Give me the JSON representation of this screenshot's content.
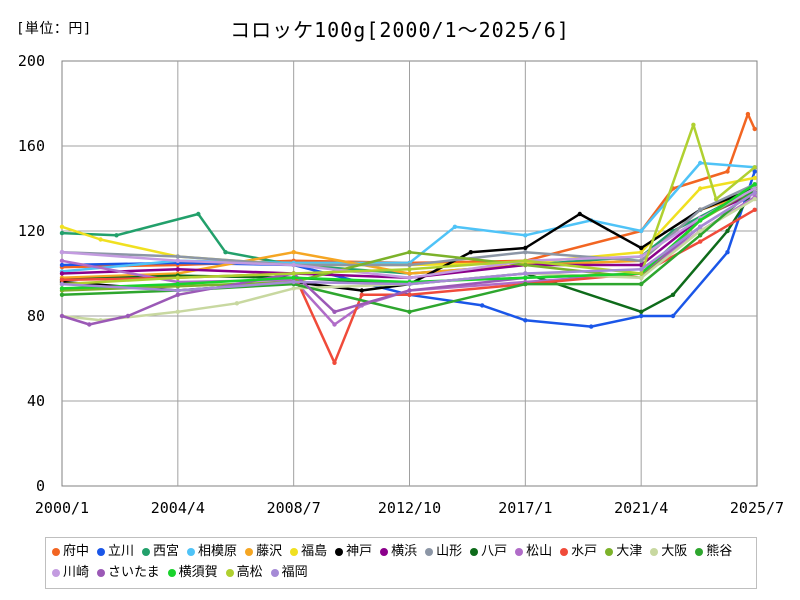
{
  "chart_data": {
    "type": "line",
    "title": "コロッケ100g[2000/1〜2025/6]",
    "unit_label": "[単位：円]",
    "y_ticks": [
      "0",
      "40",
      "80",
      "120",
      "160",
      "200"
    ],
    "x_ticks": [
      "2000/1",
      "2004/4",
      "2008/7",
      "2012/10",
      "2017/1",
      "2021/4",
      "2025/7"
    ],
    "ylim": [
      0,
      200
    ],
    "xlim": [
      "2000/1",
      "2025/7"
    ],
    "grid": true,
    "legend_position": "bottom",
    "series": [
      {
        "name": "府中",
        "color": "#f26522",
        "points": [
          [
            "2000/1",
            103
          ],
          [
            "2004/4",
            104
          ],
          [
            "2008/7",
            106
          ],
          [
            "2012/10",
            105
          ],
          [
            "2017/1",
            106
          ],
          [
            "2021/4",
            120
          ],
          [
            "2022/6",
            140
          ],
          [
            "2024/6",
            148
          ],
          [
            "2025/3",
            175
          ],
          [
            "2025/6",
            168
          ]
        ]
      },
      {
        "name": "立川",
        "color": "#1a56e8",
        "points": [
          [
            "2000/1",
            104
          ],
          [
            "2004/4",
            105
          ],
          [
            "2008/7",
            104
          ],
          [
            "2012/10",
            90
          ],
          [
            "2015/6",
            85
          ],
          [
            "2017/1",
            78
          ],
          [
            "2019/6",
            75
          ],
          [
            "2021/4",
            80
          ],
          [
            "2022/6",
            80
          ],
          [
            "2024/6",
            110
          ],
          [
            "2025/6",
            148
          ]
        ]
      },
      {
        "name": "西宮",
        "color": "#22a06b",
        "points": [
          [
            "2000/1",
            119
          ],
          [
            "2002/1",
            118
          ],
          [
            "2005/1",
            128
          ],
          [
            "2006/1",
            110
          ],
          [
            "2008/7",
            104
          ],
          [
            "2012/10",
            100
          ],
          [
            "2017/1",
            104
          ],
          [
            "2021/4",
            108
          ],
          [
            "2022/6",
            120
          ],
          [
            "2025/6",
            140
          ]
        ]
      },
      {
        "name": "相模原",
        "color": "#4fc3f7",
        "points": [
          [
            "2000/1",
            101
          ],
          [
            "2004/4",
            106
          ],
          [
            "2008/7",
            105
          ],
          [
            "2012/10",
            105
          ],
          [
            "2014/6",
            122
          ],
          [
            "2017/1",
            118
          ],
          [
            "2019/6",
            125
          ],
          [
            "2021/4",
            120
          ],
          [
            "2023/6",
            152
          ],
          [
            "2025/6",
            150
          ]
        ]
      },
      {
        "name": "藤沢",
        "color": "#f5a623",
        "points": [
          [
            "2000/1",
            98
          ],
          [
            "2004/4",
            100
          ],
          [
            "2008/7",
            110
          ],
          [
            "2012/10",
            100
          ],
          [
            "2017/1",
            104
          ],
          [
            "2021/4",
            106
          ],
          [
            "2023/6",
            130
          ],
          [
            "2025/6",
            138
          ]
        ]
      },
      {
        "name": "福島",
        "color": "#f0e020",
        "points": [
          [
            "2000/1",
            122
          ],
          [
            "2001/6",
            116
          ],
          [
            "2004/4",
            108
          ],
          [
            "2008/7",
            104
          ],
          [
            "2012/10",
            104
          ],
          [
            "2017/1",
            105
          ],
          [
            "2021/4",
            110
          ],
          [
            "2023/6",
            140
          ],
          [
            "2025/6",
            145
          ]
        ]
      },
      {
        "name": "神戸",
        "color": "#000000",
        "points": [
          [
            "2000/1",
            96
          ],
          [
            "2004/4",
            92
          ],
          [
            "2008/7",
            96
          ],
          [
            "2011/1",
            92
          ],
          [
            "2012/10",
            95
          ],
          [
            "2015/1",
            110
          ],
          [
            "2017/1",
            112
          ],
          [
            "2019/1",
            128
          ],
          [
            "2021/4",
            112
          ],
          [
            "2023/6",
            130
          ],
          [
            "2025/6",
            140
          ]
        ]
      },
      {
        "name": "横浜",
        "color": "#8b008b",
        "points": [
          [
            "2000/1",
            100
          ],
          [
            "2004/4",
            102
          ],
          [
            "2008/7",
            100
          ],
          [
            "2012/10",
            98
          ],
          [
            "2017/1",
            104
          ],
          [
            "2021/4",
            104
          ],
          [
            "2023/6",
            126
          ],
          [
            "2025/6",
            138
          ]
        ]
      },
      {
        "name": "山形",
        "color": "#8c96a6",
        "points": [
          [
            "2000/1",
            110
          ],
          [
            "2004/4",
            108
          ],
          [
            "2008/7",
            104
          ],
          [
            "2012/10",
            104
          ],
          [
            "2017/1",
            110
          ],
          [
            "2021/4",
            106
          ],
          [
            "2023/6",
            130
          ],
          [
            "2025/6",
            142
          ]
        ]
      },
      {
        "name": "八戸",
        "color": "#0e6b1a",
        "points": [
          [
            "2000/1",
            97
          ],
          [
            "2004/4",
            99
          ],
          [
            "2008/7",
            98
          ],
          [
            "2012/10",
            95
          ],
          [
            "2017/1",
            100
          ],
          [
            "2021/4",
            82
          ],
          [
            "2022/6",
            90
          ],
          [
            "2024/6",
            120
          ],
          [
            "2025/6",
            140
          ]
        ]
      },
      {
        "name": "松山",
        "color": "#b06cc8",
        "points": [
          [
            "2000/1",
            106
          ],
          [
            "2004/4",
            96
          ],
          [
            "2008/7",
            97
          ],
          [
            "2010/1",
            76
          ],
          [
            "2011/1",
            85
          ],
          [
            "2012/10",
            92
          ],
          [
            "2017/1",
            96
          ],
          [
            "2021/4",
            100
          ],
          [
            "2023/6",
            120
          ],
          [
            "2025/6",
            136
          ]
        ]
      },
      {
        "name": "水戸",
        "color": "#f04b3a",
        "points": [
          [
            "2000/1",
            97
          ],
          [
            "2004/4",
            98
          ],
          [
            "2008/7",
            100
          ],
          [
            "2010/1",
            58
          ],
          [
            "2011/1",
            90
          ],
          [
            "2012/10",
            90
          ],
          [
            "2017/1",
            95
          ],
          [
            "2021/4",
            100
          ],
          [
            "2023/6",
            115
          ],
          [
            "2025/6",
            130
          ]
        ]
      },
      {
        "name": "大津",
        "color": "#7cb22a",
        "points": [
          [
            "2000/1",
            92
          ],
          [
            "2004/4",
            94
          ],
          [
            "2008/7",
            96
          ],
          [
            "2012/10",
            110
          ],
          [
            "2017/1",
            104
          ],
          [
            "2021/4",
            98
          ],
          [
            "2023/6",
            125
          ],
          [
            "2025/6",
            140
          ]
        ]
      },
      {
        "name": "大阪",
        "color": "#c8d8a0",
        "points": [
          [
            "2000/1",
            80
          ],
          [
            "2001/6",
            78
          ],
          [
            "2004/4",
            82
          ],
          [
            "2006/6",
            86
          ],
          [
            "2008/7",
            93
          ],
          [
            "2012/10",
            95
          ],
          [
            "2017/1",
            100
          ],
          [
            "2021/4",
            98
          ],
          [
            "2023/6",
            120
          ],
          [
            "2025/6",
            135
          ]
        ]
      },
      {
        "name": "熊谷",
        "color": "#2ea62e",
        "points": [
          [
            "2000/1",
            90
          ],
          [
            "2004/4",
            92
          ],
          [
            "2008/7",
            95
          ],
          [
            "2012/10",
            82
          ],
          [
            "2017/1",
            95
          ],
          [
            "2021/4",
            95
          ],
          [
            "2023/6",
            118
          ],
          [
            "2025/6",
            140
          ]
        ]
      },
      {
        "name": "川崎",
        "color": "#c39be0",
        "points": [
          [
            "2000/1",
            110
          ],
          [
            "2004/4",
            106
          ],
          [
            "2008/7",
            104
          ],
          [
            "2012/10",
            98
          ],
          [
            "2017/1",
            106
          ],
          [
            "2021/4",
            108
          ],
          [
            "2023/6",
            126
          ],
          [
            "2025/6",
            140
          ]
        ]
      },
      {
        "name": "さいたま",
        "color": "#9b59b6",
        "points": [
          [
            "2000/1",
            80
          ],
          [
            "2001/1",
            76
          ],
          [
            "2002/6",
            80
          ],
          [
            "2004/4",
            90
          ],
          [
            "2008/7",
            100
          ],
          [
            "2010/1",
            82
          ],
          [
            "2012/10",
            92
          ],
          [
            "2017/1",
            98
          ],
          [
            "2021/4",
            100
          ],
          [
            "2023/6",
            122
          ],
          [
            "2025/6",
            138
          ]
        ]
      },
      {
        "name": "横須賀",
        "color": "#19d32c",
        "points": [
          [
            "2000/1",
            93
          ],
          [
            "2004/4",
            95
          ],
          [
            "2008/7",
            98
          ],
          [
            "2012/10",
            96
          ],
          [
            "2017/1",
            98
          ],
          [
            "2021/4",
            100
          ],
          [
            "2023/6",
            125
          ],
          [
            "2025/6",
            142
          ]
        ]
      },
      {
        "name": "高松",
        "color": "#b0d030",
        "points": [
          [
            "2000/1",
            95
          ],
          [
            "2004/4",
            98
          ],
          [
            "2008/7",
            100
          ],
          [
            "2012/10",
            102
          ],
          [
            "2017/1",
            106
          ],
          [
            "2021/4",
            100
          ],
          [
            "2023/3",
            170
          ],
          [
            "2024/1",
            135
          ],
          [
            "2025/6",
            150
          ]
        ]
      },
      {
        "name": "福岡",
        "color": "#a58ad6",
        "points": [
          [
            "2000/1",
            95
          ],
          [
            "2004/4",
            92
          ],
          [
            "2008/7",
            96
          ],
          [
            "2012/10",
            95
          ],
          [
            "2017/1",
            100
          ],
          [
            "2021/4",
            102
          ],
          [
            "2023/6",
            122
          ],
          [
            "2025/6",
            138
          ]
        ]
      }
    ]
  }
}
